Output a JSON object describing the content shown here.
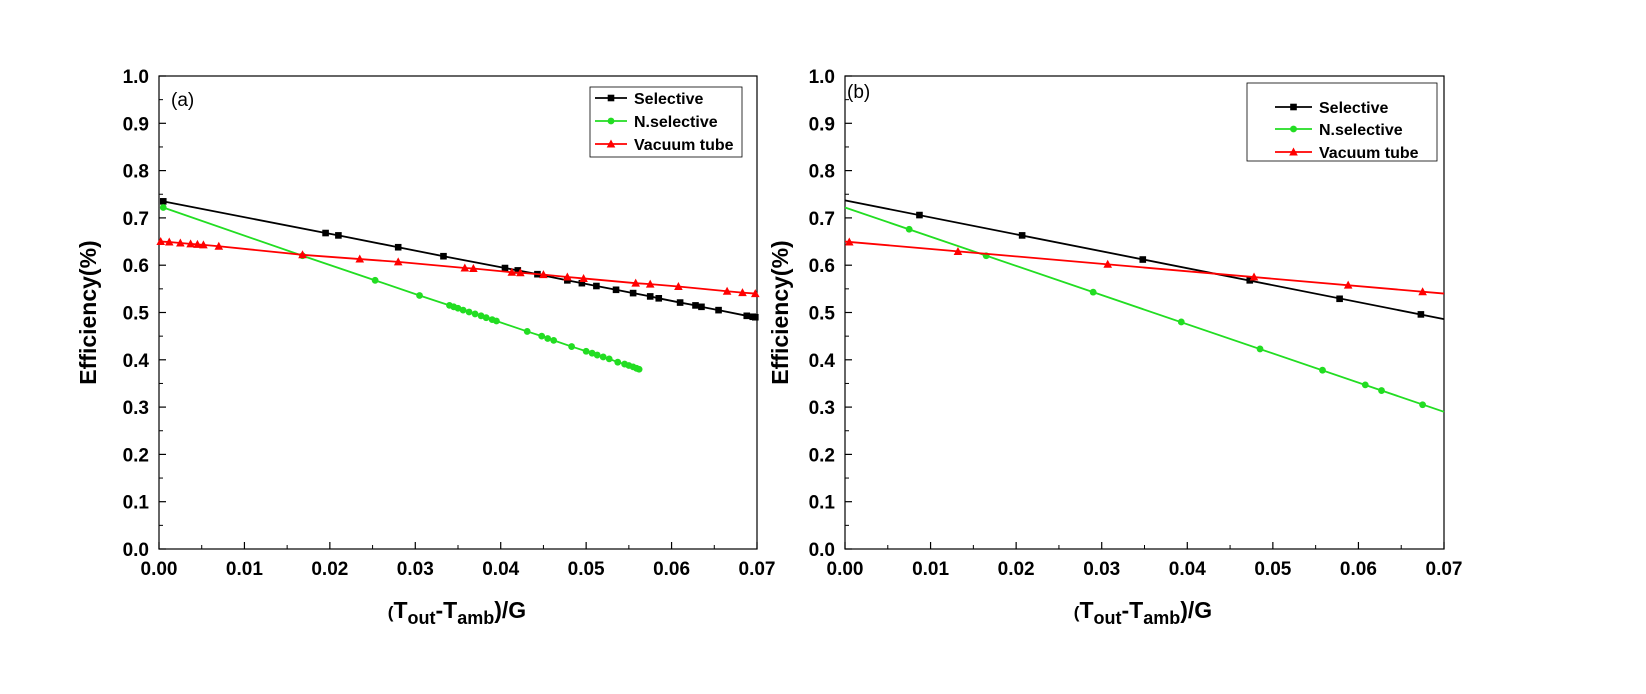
{
  "chart_data": [
    {
      "type": "line",
      "panel_label": "(a)",
      "xlabel": {
        "pre": "(",
        "T": "T",
        "sub1": "out",
        "dash": "-T",
        "sub2": "amb",
        "post": ")/G"
      },
      "ylabel": "Efficiency(%)",
      "xlim": [
        0,
        0.07
      ],
      "ylim": [
        0,
        1.0
      ],
      "x_ticks": [
        "0.00",
        "0.01",
        "0.02",
        "0.03",
        "0.04",
        "0.05",
        "0.06",
        "0.07"
      ],
      "y_ticks": [
        "0.0",
        "0.1",
        "0.2",
        "0.3",
        "0.4",
        "0.5",
        "0.6",
        "0.7",
        "0.8",
        "0.9",
        "1.0"
      ],
      "legend_position": "top-right",
      "series": [
        {
          "name": "Selective",
          "color": "#000000",
          "marker": "square",
          "x": [
            0.0005,
            0.0195,
            0.021,
            0.028,
            0.0333,
            0.0405,
            0.042,
            0.0443,
            0.0478,
            0.0495,
            0.0512,
            0.0535,
            0.0555,
            0.0575,
            0.0585,
            0.061,
            0.0628,
            0.0635,
            0.0655,
            0.0688,
            0.0695,
            0.0698
          ],
          "y": [
            0.735,
            0.668,
            0.663,
            0.638,
            0.619,
            0.594,
            0.589,
            0.581,
            0.568,
            0.562,
            0.556,
            0.548,
            0.541,
            0.534,
            0.53,
            0.521,
            0.515,
            0.512,
            0.505,
            0.493,
            0.491,
            0.49
          ]
        },
        {
          "name": "N.selective",
          "color": "#22dd22",
          "marker": "circle",
          "x": [
            0.0005,
            0.0168,
            0.0253,
            0.0305,
            0.034,
            0.0345,
            0.035,
            0.0356,
            0.0363,
            0.037,
            0.0377,
            0.0383,
            0.039,
            0.0395,
            0.0431,
            0.0448,
            0.0455,
            0.0462,
            0.0483,
            0.05,
            0.0507,
            0.0513,
            0.052,
            0.0527,
            0.0537,
            0.0545,
            0.055,
            0.0555,
            0.0559,
            0.0562
          ],
          "y": [
            0.722,
            0.62,
            0.568,
            0.536,
            0.515,
            0.512,
            0.509,
            0.505,
            0.501,
            0.497,
            0.493,
            0.489,
            0.485,
            0.482,
            0.46,
            0.45,
            0.445,
            0.441,
            0.428,
            0.418,
            0.414,
            0.41,
            0.406,
            0.402,
            0.395,
            0.391,
            0.388,
            0.385,
            0.382,
            0.38
          ]
        },
        {
          "name": "Vacuum tube",
          "color": "#ff0000",
          "marker": "triangle",
          "x": [
            0.0002,
            0.0012,
            0.0025,
            0.0037,
            0.0045,
            0.0052,
            0.007,
            0.0168,
            0.0235,
            0.028,
            0.0358,
            0.0368,
            0.0413,
            0.0423,
            0.045,
            0.0478,
            0.0497,
            0.0558,
            0.0575,
            0.0608,
            0.0665,
            0.0683,
            0.0698
          ],
          "y": [
            0.65,
            0.649,
            0.647,
            0.645,
            0.644,
            0.643,
            0.64,
            0.622,
            0.613,
            0.607,
            0.594,
            0.593,
            0.585,
            0.584,
            0.58,
            0.575,
            0.572,
            0.562,
            0.56,
            0.555,
            0.545,
            0.542,
            0.54
          ]
        }
      ]
    },
    {
      "type": "line",
      "panel_label": "(b)",
      "xlabel": {
        "pre": "(",
        "T": "T",
        "sub1": "out",
        "dash": "-T",
        "sub2": "amb",
        "post": ")/G"
      },
      "ylabel": "Efficiency(%)",
      "xlim": [
        0,
        0.07
      ],
      "ylim": [
        0,
        1.0
      ],
      "x_ticks": [
        "0.00",
        "0.01",
        "0.02",
        "0.03",
        "0.04",
        "0.05",
        "0.06",
        "0.07"
      ],
      "y_ticks": [
        "0.0",
        "0.1",
        "0.2",
        "0.3",
        "0.4",
        "0.5",
        "0.6",
        "0.7",
        "0.8",
        "0.9",
        "1.0"
      ],
      "legend_position": "top-right",
      "series": [
        {
          "name": "Selective",
          "color": "#000000",
          "marker": "square",
          "line_x": [
            0,
            0.07
          ],
          "line_y": [
            0.737,
            0.486
          ],
          "x": [
            0.0087,
            0.0207,
            0.0348,
            0.0473,
            0.0578,
            0.0673
          ],
          "y": [
            0.706,
            0.663,
            0.612,
            0.568,
            0.529,
            0.496
          ]
        },
        {
          "name": "N.selective",
          "color": "#22dd22",
          "marker": "circle",
          "line_x": [
            0,
            0.07
          ],
          "line_y": [
            0.722,
            0.29
          ],
          "x": [
            0.0075,
            0.0165,
            0.029,
            0.0393,
            0.0485,
            0.0558,
            0.0608,
            0.0627,
            0.0675
          ],
          "y": [
            0.676,
            0.62,
            0.543,
            0.48,
            0.423,
            0.378,
            0.347,
            0.335,
            0.305
          ]
        },
        {
          "name": "Vacuum tube",
          "color": "#ff0000",
          "marker": "triangle",
          "line_x": [
            0,
            0.07
          ],
          "line_y": [
            0.65,
            0.54
          ],
          "x": [
            0.0005,
            0.0132,
            0.0307,
            0.0478,
            0.0588,
            0.0675
          ],
          "y": [
            0.649,
            0.629,
            0.602,
            0.575,
            0.558,
            0.544
          ]
        }
      ]
    }
  ]
}
